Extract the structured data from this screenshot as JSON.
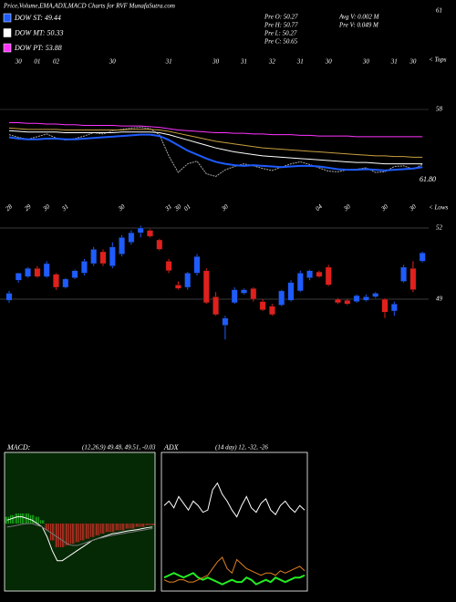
{
  "header": {
    "title": "Price,Volume,EMA,ADX,MACD Charts for RVF MunafaSutra.com"
  },
  "legend": [
    {
      "label": "DOW ST: 49.44",
      "color": "#1e5cff"
    },
    {
      "label": "DOW MT: 50.33",
      "color": "#ffffff"
    },
    {
      "label": "DOW PT: 53.88",
      "color": "#ff33ff"
    }
  ],
  "quotes": [
    "Pre  O: 50.27",
    "Pre  H: 50.77",
    "Pre  L: 50.27",
    "Pre  C: 50.65",
    "Avg V: 0.002  M",
    "Pre  V: 0.049 M"
  ],
  "chart_data": [
    {
      "type": "candlestick",
      "categories": [
        null,
        "30",
        null,
        "01",
        null,
        "02",
        null,
        null,
        null,
        null,
        null,
        "30",
        null,
        null,
        null,
        null,
        null,
        "31",
        null,
        null,
        null,
        null,
        "30",
        null,
        null,
        "31",
        null,
        null,
        "32",
        null,
        null,
        "31",
        null,
        null,
        "30",
        null,
        null,
        null,
        "30",
        null,
        null,
        "31",
        null,
        "30",
        null
      ],
      "low_labels": [
        "28",
        null,
        "29",
        null,
        "30",
        null,
        "31",
        null,
        null,
        null,
        null,
        null,
        "30",
        null,
        null,
        null,
        null,
        "31",
        "30",
        "01",
        null,
        null,
        null,
        "30",
        null,
        null,
        null,
        null,
        null,
        null,
        null,
        null,
        null,
        "04",
        null,
        null,
        "30",
        null,
        null,
        null,
        "30",
        null,
        null,
        "30",
        null
      ],
      "open": [
        48.95,
        49.8,
        49.95,
        50.3,
        49.95,
        50.05,
        49.5,
        49.9,
        50.1,
        50.5,
        51.0,
        50.4,
        50.9,
        51.4,
        51.8,
        51.9,
        51.5,
        50.6,
        49.6,
        49.5,
        50.1,
        50.2,
        49.1,
        47.9,
        48.85,
        49.25,
        49.45,
        48.9,
        48.7,
        48.75,
        48.95,
        49.35,
        49.9,
        50.15,
        50.35,
        49.0,
        48.95,
        48.9,
        48.95,
        49.1,
        49.0,
        48.5,
        49.75,
        50.3,
        50.6
      ],
      "high": [
        49.35,
        50.1,
        50.35,
        50.4,
        50.6,
        50.1,
        49.9,
        50.25,
        50.7,
        51.2,
        51.1,
        51.4,
        51.7,
        51.9,
        52.1,
        51.95,
        51.55,
        50.7,
        49.75,
        50.15,
        50.9,
        50.3,
        49.3,
        48.3,
        49.5,
        49.45,
        49.5,
        49.0,
        48.8,
        49.4,
        49.8,
        50.2,
        50.25,
        50.2,
        50.45,
        49.05,
        49.0,
        49.2,
        49.2,
        49.3,
        49.05,
        48.9,
        50.45,
        50.6,
        51.0
      ],
      "low": [
        48.85,
        49.7,
        49.9,
        49.9,
        49.9,
        49.4,
        49.45,
        49.85,
        50.0,
        50.4,
        50.4,
        50.3,
        50.8,
        51.3,
        51.6,
        51.6,
        51.05,
        50.1,
        49.4,
        49.4,
        50.0,
        48.8,
        48.3,
        47.3,
        48.8,
        49.2,
        48.9,
        48.5,
        48.3,
        48.7,
        48.9,
        49.3,
        49.8,
        49.9,
        49.55,
        48.8,
        48.75,
        48.85,
        48.9,
        49.05,
        48.2,
        48.3,
        49.7,
        49.3,
        50.55
      ],
      "close": [
        49.25,
        50.1,
        50.3,
        49.95,
        50.5,
        49.5,
        49.85,
        50.2,
        50.6,
        51.1,
        50.5,
        51.2,
        51.6,
        51.8,
        52.0,
        51.65,
        51.1,
        50.2,
        49.45,
        50.1,
        50.8,
        48.85,
        48.35,
        48.2,
        49.4,
        49.4,
        49.0,
        48.55,
        48.35,
        49.35,
        49.7,
        50.1,
        50.2,
        49.95,
        49.6,
        48.85,
        48.8,
        49.15,
        49.1,
        49.25,
        48.45,
        48.8,
        50.35,
        49.4,
        50.95
      ],
      "up_color": "#1e5cff",
      "down_color": "#e0201c",
      "ylim": [
        47,
        53
      ],
      "yticks": [
        52,
        49
      ],
      "top_label": "< Tops",
      "low_label": "< Lows",
      "annotations": [
        "61",
        "61.80"
      ],
      "overlay": {
        "type": "line",
        "ylim": [
          47,
          60.75
        ],
        "yticks": [
          58
        ],
        "series": [
          {
            "color": "#aaaaaa",
            "values": [
              54.2,
              53.8,
              53.5,
              53.9,
              54.3,
              53.7,
              53.4,
              53.6,
              54.0,
              54.5,
              54.3,
              54.8,
              55.0,
              55.2,
              55.3,
              55.1,
              54.2,
              51.0,
              48.5,
              49.8,
              50.2,
              48.3,
              47.9,
              48.9,
              49.4,
              49.8,
              49.5,
              49.1,
              48.8,
              49.3,
              49.8,
              50.1,
              49.7,
              49.2,
              48.7,
              48.6,
              48.9,
              49.0,
              49.2,
              48.5,
              48.6,
              49.4,
              49.5,
              49.0,
              49.7
            ]
          },
          {
            "color": "#c8a040",
            "values": [
              55.2,
              55.1,
              55.0,
              55.0,
              55.0,
              55.0,
              54.9,
              54.9,
              54.9,
              54.9,
              54.9,
              54.9,
              54.9,
              55.0,
              55.0,
              55.0,
              54.9,
              54.7,
              54.4,
              54.1,
              53.8,
              53.5,
              53.2,
              53.0,
              52.8,
              52.6,
              52.4,
              52.2,
              52.1,
              52.0,
              51.9,
              51.8,
              51.7,
              51.6,
              51.5,
              51.4,
              51.3,
              51.2,
              51.1,
              51.0,
              51.0,
              50.9,
              50.9,
              50.8,
              50.8
            ]
          },
          {
            "color": "#ffffff",
            "values": [
              54.8,
              54.7,
              54.6,
              54.6,
              54.6,
              54.6,
              54.5,
              54.5,
              54.5,
              54.5,
              54.5,
              54.5,
              54.6,
              54.6,
              54.6,
              54.6,
              54.5,
              54.2,
              53.8,
              53.4,
              53.0,
              52.6,
              52.2,
              51.9,
              51.6,
              51.4,
              51.2,
              51.0,
              50.9,
              50.8,
              50.7,
              50.6,
              50.5,
              50.4,
              50.3,
              50.2,
              50.1,
              50.0,
              50.0,
              49.9,
              49.8,
              49.8,
              49.8,
              49.8,
              49.8
            ]
          },
          {
            "color": "#ff33ff",
            "values": [
              56.0,
              56.0,
              55.9,
              55.9,
              55.8,
              55.8,
              55.7,
              55.7,
              55.6,
              55.6,
              55.6,
              55.6,
              55.5,
              55.5,
              55.5,
              55.4,
              55.3,
              55.1,
              54.9,
              54.8,
              54.7,
              54.6,
              54.5,
              54.5,
              54.4,
              54.4,
              54.3,
              54.3,
              54.2,
              54.2,
              54.2,
              54.1,
              54.1,
              54.0,
              54.0,
              54.0,
              54.0,
              53.9,
              53.9,
              53.9,
              53.9,
              53.9,
              53.9,
              53.9,
              53.9
            ]
          },
          {
            "color": "#1e5cff",
            "values": [
              53.8,
              53.6,
              53.5,
              53.5,
              53.6,
              53.6,
              53.5,
              53.5,
              53.6,
              53.7,
              53.8,
              53.9,
              54.0,
              54.1,
              54.2,
              54.2,
              54.0,
              53.4,
              52.6,
              51.8,
              51.2,
              50.6,
              50.1,
              49.8,
              49.6,
              49.5,
              49.6,
              49.5,
              49.4,
              49.3,
              49.4,
              49.5,
              49.5,
              49.4,
              49.2,
              49.0,
              48.9,
              48.9,
              49.0,
              48.9,
              48.8,
              48.9,
              49.0,
              49.1,
              49.3
            ]
          }
        ]
      }
    },
    {
      "type": "macd",
      "title": "MACD:",
      "params": "(12,26,9) 49.48, 49.51, -0.03",
      "ylim": [
        -2,
        2
      ],
      "histogram": {
        "up_color": "#22cc22",
        "down_color": "#ff3030",
        "values": [
          0.2,
          0.25,
          0.3,
          0.3,
          0.3,
          0.25,
          0.2,
          0.1,
          -0.2,
          -0.5,
          -0.7,
          -0.7,
          -0.65,
          -0.6,
          -0.55,
          -0.5,
          -0.45,
          -0.4,
          -0.35,
          -0.3,
          -0.25,
          -0.25,
          -0.2,
          -0.2,
          -0.15,
          -0.15,
          -0.1,
          -0.1,
          -0.05,
          -0.05
        ]
      },
      "series": [
        {
          "color": "#ffffff",
          "values": [
            0.1,
            0.15,
            0.2,
            0.2,
            0.15,
            0.1,
            0.0,
            -0.1,
            -0.4,
            -0.8,
            -1.1,
            -1.1,
            -1.0,
            -0.9,
            -0.8,
            -0.7,
            -0.6,
            -0.5,
            -0.45,
            -0.4,
            -0.35,
            -0.3,
            -0.28,
            -0.25,
            -0.22,
            -0.2,
            -0.18,
            -0.15,
            -0.12,
            -0.1
          ]
        },
        {
          "color": "#777777",
          "values": [
            -0.1,
            -0.08,
            -0.05,
            -0.02,
            0,
            0,
            -0.05,
            -0.1,
            -0.2,
            -0.3,
            -0.4,
            -0.5,
            -0.6,
            -0.65,
            -0.65,
            -0.6,
            -0.55,
            -0.5,
            -0.45,
            -0.42,
            -0.38,
            -0.35,
            -0.32,
            -0.3,
            -0.27,
            -0.25,
            -0.22,
            -0.2,
            -0.17,
            -0.15
          ]
        }
      ]
    },
    {
      "type": "line",
      "title": "ADX",
      "params": "(14 day) 12, -32, -26",
      "ylim": [
        0,
        60
      ],
      "series": [
        {
          "color": "#ffffff",
          "values": [
            38,
            40,
            37,
            42,
            39,
            36,
            40,
            38,
            35,
            36,
            45,
            48,
            43,
            40,
            36,
            33,
            38,
            42,
            37,
            35,
            39,
            41,
            36,
            34,
            38,
            40,
            37,
            35,
            38,
            36
          ]
        },
        {
          "color": "#22ee22",
          "values": [
            6,
            7,
            8,
            7,
            6,
            7,
            8,
            6,
            5,
            6,
            5,
            4,
            3,
            4,
            5,
            4,
            4,
            6,
            5,
            3,
            4,
            5,
            4,
            6,
            5,
            4,
            5,
            6,
            6,
            7
          ]
        },
        {
          "color": "#e08020",
          "values": [
            5,
            4,
            4,
            5,
            5,
            4,
            4,
            5,
            6,
            7,
            10,
            13,
            15,
            10,
            8,
            14,
            12,
            10,
            9,
            8,
            7,
            8,
            8,
            7,
            9,
            8,
            9,
            10,
            11,
            9
          ]
        }
      ]
    }
  ]
}
